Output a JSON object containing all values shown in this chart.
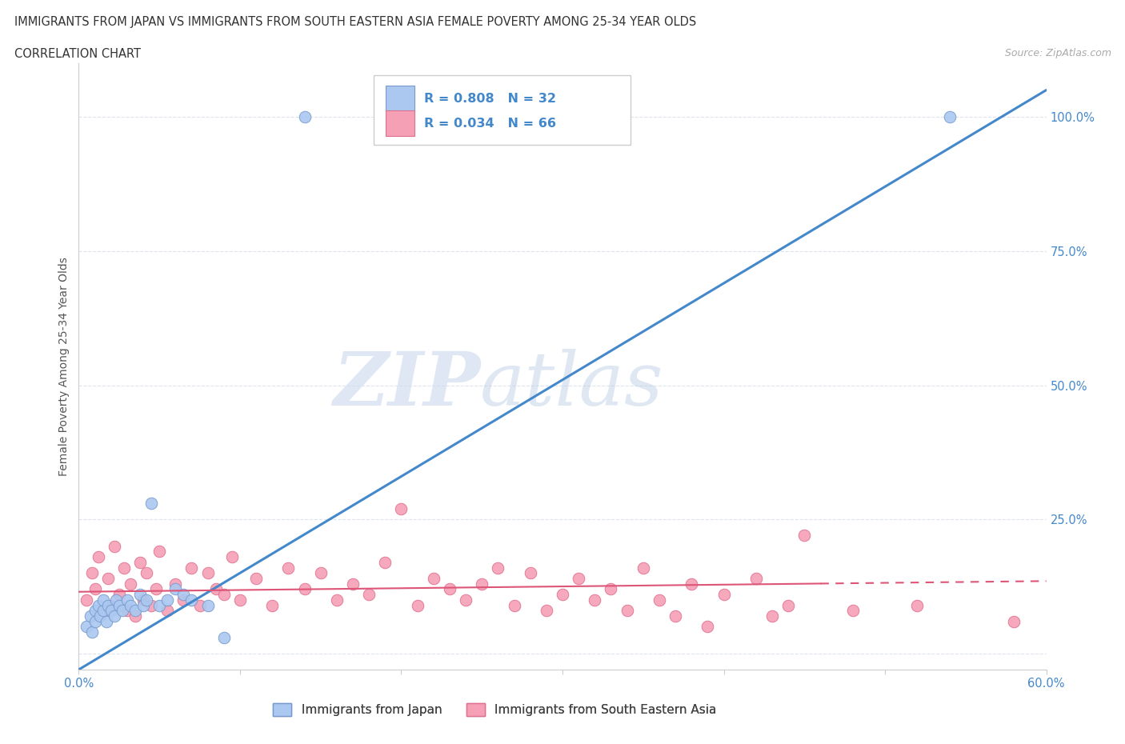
{
  "title1": "IMMIGRANTS FROM JAPAN VS IMMIGRANTS FROM SOUTH EASTERN ASIA FEMALE POVERTY AMONG 25-34 YEAR OLDS",
  "title2": "CORRELATION CHART",
  "source": "Source: ZipAtlas.com",
  "ylabel": "Female Poverty Among 25-34 Year Olds",
  "xlim": [
    0.0,
    0.6
  ],
  "ylim": [
    -0.03,
    1.1
  ],
  "yticks": [
    0.0,
    0.25,
    0.5,
    0.75,
    1.0
  ],
  "ytick_labels": [
    "",
    "25.0%",
    "50.0%",
    "75.0%",
    "100.0%"
  ],
  "xticks": [
    0.0,
    0.1,
    0.2,
    0.3,
    0.4,
    0.5,
    0.6
  ],
  "xtick_labels": [
    "0.0%",
    "",
    "",
    "",
    "",
    "",
    "60.0%"
  ],
  "japan_color": "#aac8f0",
  "sea_color": "#f5a0b5",
  "japan_edge": "#7799cc",
  "sea_edge": "#e07090",
  "blue_line_color": "#4488cc",
  "pink_line_color": "#dd5577",
  "legend_label_japan": "Immigrants from Japan",
  "legend_label_sea": "Immigrants from South Eastern Asia",
  "watermark_zip": "ZIP",
  "watermark_atlas": "atlas",
  "background_color": "#ffffff",
  "grid_color": "#dde4ee",
  "tick_label_color": "#4488cc",
  "japan_x": [
    0.005,
    0.007,
    0.008,
    0.01,
    0.01,
    0.012,
    0.013,
    0.015,
    0.015,
    0.017,
    0.018,
    0.02,
    0.022,
    0.023,
    0.025,
    0.027,
    0.03,
    0.032,
    0.035,
    0.038,
    0.04,
    0.042,
    0.045,
    0.05,
    0.055,
    0.06,
    0.065,
    0.07,
    0.08,
    0.09,
    0.14,
    0.54
  ],
  "japan_y": [
    0.05,
    0.07,
    0.04,
    0.08,
    0.06,
    0.09,
    0.07,
    0.08,
    0.1,
    0.06,
    0.09,
    0.08,
    0.07,
    0.1,
    0.09,
    0.08,
    0.1,
    0.09,
    0.08,
    0.11,
    0.09,
    0.1,
    0.28,
    0.09,
    0.1,
    0.12,
    0.11,
    0.1,
    0.09,
    0.03,
    1.0,
    1.0
  ],
  "sea_x": [
    0.005,
    0.008,
    0.01,
    0.012,
    0.015,
    0.018,
    0.02,
    0.022,
    0.025,
    0.028,
    0.03,
    0.032,
    0.035,
    0.038,
    0.04,
    0.042,
    0.045,
    0.048,
    0.05,
    0.055,
    0.06,
    0.065,
    0.07,
    0.075,
    0.08,
    0.085,
    0.09,
    0.095,
    0.1,
    0.11,
    0.12,
    0.13,
    0.14,
    0.15,
    0.16,
    0.17,
    0.18,
    0.19,
    0.2,
    0.21,
    0.22,
    0.23,
    0.24,
    0.25,
    0.26,
    0.27,
    0.28,
    0.29,
    0.3,
    0.31,
    0.32,
    0.33,
    0.34,
    0.35,
    0.36,
    0.37,
    0.38,
    0.39,
    0.4,
    0.42,
    0.43,
    0.44,
    0.45,
    0.48,
    0.52,
    0.58
  ],
  "sea_y": [
    0.1,
    0.15,
    0.12,
    0.18,
    0.08,
    0.14,
    0.09,
    0.2,
    0.11,
    0.16,
    0.08,
    0.13,
    0.07,
    0.17,
    0.1,
    0.15,
    0.09,
    0.12,
    0.19,
    0.08,
    0.13,
    0.1,
    0.16,
    0.09,
    0.15,
    0.12,
    0.11,
    0.18,
    0.1,
    0.14,
    0.09,
    0.16,
    0.12,
    0.15,
    0.1,
    0.13,
    0.11,
    0.17,
    0.27,
    0.09,
    0.14,
    0.12,
    0.1,
    0.13,
    0.16,
    0.09,
    0.15,
    0.08,
    0.11,
    0.14,
    0.1,
    0.12,
    0.08,
    0.16,
    0.1,
    0.07,
    0.13,
    0.05,
    0.11,
    0.14,
    0.07,
    0.09,
    0.22,
    0.08,
    0.09,
    0.06
  ],
  "japan_trend_x": [
    0.0,
    0.6
  ],
  "japan_trend_y": [
    -0.03,
    1.05
  ],
  "sea_trend_x": [
    0.0,
    0.6
  ],
  "sea_trend_y": [
    0.115,
    0.135
  ]
}
